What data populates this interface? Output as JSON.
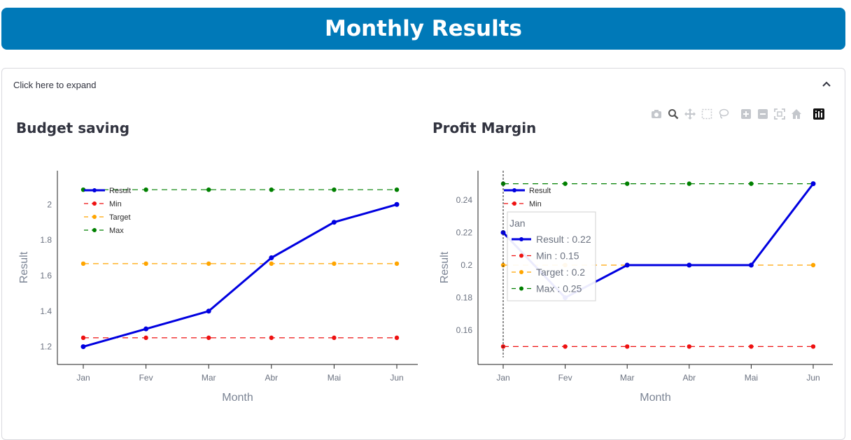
{
  "header": {
    "title": "Monthly Results"
  },
  "expander": {
    "label": "Click here to expand"
  },
  "toolbar": {
    "icons": [
      "camera-icon",
      "zoom-icon",
      "pan-icon",
      "box-select-icon",
      "lasso-icon",
      "zoom-in-icon",
      "zoom-out-icon",
      "autoscale-icon",
      "reset-axes-icon",
      "plotly-logo-icon"
    ]
  },
  "colors": {
    "result": "#0000e0",
    "min": "#ee1111",
    "target": "#ffa500",
    "max": "#008000",
    "banner": "#0079b8"
  },
  "chart_data": [
    {
      "type": "line",
      "title": "Budget saving",
      "xlabel": "Month",
      "ylabel": "Result",
      "categories": [
        "Jan",
        "Fev",
        "Mar",
        "Abr",
        "Mai",
        "Jun"
      ],
      "yticks": [
        1.2,
        1.4,
        1.6,
        1.8,
        2
      ],
      "ylim": [
        1.1,
        2.19
      ],
      "legend_position": "top-left",
      "grid": false,
      "series": [
        {
          "name": "Result",
          "values": [
            1.2,
            1.3,
            1.4,
            1.7,
            1.9,
            2.0
          ]
        },
        {
          "name": "Min",
          "values": [
            1.25,
            1.25,
            1.25,
            1.25,
            1.25,
            1.25
          ]
        },
        {
          "name": "Target",
          "values": [
            1.667,
            1.667,
            1.667,
            1.667,
            1.667,
            1.667
          ]
        },
        {
          "name": "Max",
          "values": [
            2.083,
            2.083,
            2.083,
            2.083,
            2.083,
            2.083
          ]
        }
      ]
    },
    {
      "type": "line",
      "title": "Profit Margin",
      "xlabel": "Month",
      "ylabel": "Result",
      "categories": [
        "Jan",
        "Fev",
        "Mar",
        "Abr",
        "Mai",
        "Jun"
      ],
      "yticks": [
        0.16,
        0.18,
        0.2,
        0.22,
        0.24
      ],
      "ylim": [
        0.139,
        0.258
      ],
      "legend_position": "top-left",
      "grid": false,
      "series": [
        {
          "name": "Result",
          "values": [
            0.22,
            0.18,
            0.2,
            0.2,
            0.2,
            0.25
          ]
        },
        {
          "name": "Min",
          "values": [
            0.15,
            0.15,
            0.15,
            0.15,
            0.15,
            0.15
          ]
        },
        {
          "name": "Target",
          "values": [
            0.2,
            0.2,
            0.2,
            0.2,
            0.2,
            0.2
          ]
        },
        {
          "name": "Max",
          "values": [
            0.25,
            0.25,
            0.25,
            0.25,
            0.25,
            0.25
          ]
        }
      ],
      "hover": {
        "category": "Jan",
        "lines": [
          "Result : 0.22",
          "Min : 0.15",
          "Target : 0.2",
          "Max : 0.25"
        ]
      }
    }
  ]
}
